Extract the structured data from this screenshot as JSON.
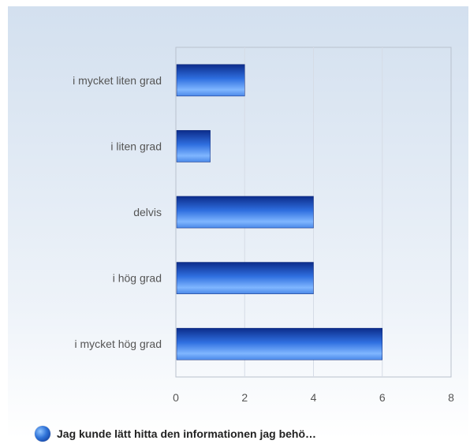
{
  "chart_data": {
    "type": "bar",
    "orientation": "horizontal",
    "categories": [
      "i mycket liten grad",
      "i liten grad",
      "delvis",
      "i hög grad",
      "i mycket hög grad"
    ],
    "series": [
      {
        "name": "Jag kunde lätt hitta den informationen jag behö…",
        "values": [
          2,
          1,
          4,
          4,
          6
        ]
      }
    ],
    "title": "",
    "xlabel": "",
    "ylabel": "",
    "xlim": [
      0,
      8
    ],
    "x_ticks": [
      "0",
      "2",
      "4",
      "6",
      "8"
    ],
    "grid": true,
    "legend_position": "bottom-left",
    "colors": {
      "bar_dark": "#0c2c8a",
      "bar_mid": "#2f6fe0",
      "bar_light": "#7fb6ff",
      "grid": "#d6dce6",
      "axis": "#b9c1cd",
      "label": "#555555"
    }
  }
}
